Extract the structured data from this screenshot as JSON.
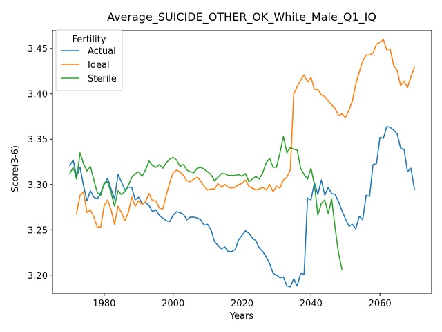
{
  "chart_data": {
    "type": "line",
    "title": "Average_SUICIDE_OTHER_OK_White_Male_Q1_IQ",
    "xlabel": "Years",
    "ylabel": "Score(3-6)",
    "xlim": [
      1965,
      2075
    ],
    "ylim": [
      3.18,
      3.47
    ],
    "x_ticks": [
      1980,
      2000,
      2020,
      2040,
      2060
    ],
    "y_ticks": [
      3.2,
      3.25,
      3.3,
      3.35,
      3.4,
      3.45
    ],
    "legend": {
      "title": "Fertility",
      "placement": "top-left"
    },
    "series": [
      {
        "name": "Actual",
        "color": "#1f77b4",
        "x": [
          1970,
          1971,
          1972,
          1973,
          1974,
          1975,
          1976,
          1977,
          1978,
          1979,
          1980,
          1981,
          1982,
          1983,
          1984,
          1985,
          1986,
          1987,
          1988,
          1989,
          1990,
          1991,
          1992,
          1993,
          1994,
          1995,
          1996,
          1997,
          1998,
          1999,
          2000,
          2001,
          2002,
          2003,
          2004,
          2005,
          2006,
          2007,
          2008,
          2009,
          2010,
          2011,
          2012,
          2013,
          2014,
          2015,
          2016,
          2017,
          2018,
          2019,
          2020,
          2021,
          2022,
          2023,
          2024,
          2025,
          2026,
          2027,
          2028,
          2029,
          2030,
          2031,
          2032,
          2033,
          2034,
          2035,
          2036,
          2037,
          2038,
          2039,
          2040,
          2041,
          2042,
          2043,
          2044,
          2045,
          2046,
          2047,
          2048,
          2049,
          2050,
          2051,
          2052,
          2053,
          2054,
          2055,
          2056,
          2057,
          2058,
          2059,
          2060,
          2061,
          2062,
          2063,
          2064,
          2065,
          2066,
          2067,
          2068,
          2069,
          2070
        ],
        "values": [
          3.321,
          3.327,
          3.309,
          3.319,
          3.299,
          3.282,
          3.293,
          3.286,
          3.284,
          3.291,
          3.3,
          3.307,
          3.295,
          3.284,
          3.311,
          3.303,
          3.294,
          3.297,
          3.297,
          3.283,
          3.286,
          3.279,
          3.28,
          3.277,
          3.27,
          3.272,
          3.266,
          3.263,
          3.26,
          3.259,
          3.266,
          3.27,
          3.269,
          3.267,
          3.261,
          3.264,
          3.264,
          3.263,
          3.261,
          3.255,
          3.256,
          3.25,
          3.237,
          3.233,
          3.229,
          3.231,
          3.226,
          3.226,
          3.228,
          3.239,
          3.244,
          3.249,
          3.246,
          3.241,
          3.238,
          3.23,
          3.226,
          3.22,
          3.213,
          3.202,
          3.2,
          3.197,
          3.198,
          3.188,
          3.187,
          3.196,
          3.188,
          3.202,
          3.201,
          3.285,
          3.283,
          3.302,
          3.289,
          3.305,
          3.288,
          3.297,
          3.29,
          3.289,
          3.281,
          3.271,
          3.262,
          3.254,
          3.256,
          3.251,
          3.265,
          3.261,
          3.288,
          3.287,
          3.322,
          3.323,
          3.352,
          3.351,
          3.364,
          3.363,
          3.36,
          3.356,
          3.34,
          3.339,
          3.314,
          3.318,
          3.295
        ]
      },
      {
        "name": "Ideal",
        "color": "#ff7f0e",
        "x": [
          1972,
          1973,
          1974,
          1975,
          1976,
          1977,
          1978,
          1979,
          1980,
          1981,
          1982,
          1983,
          1984,
          1985,
          1986,
          1987,
          1988,
          1989,
          1990,
          1991,
          1992,
          1993,
          1994,
          1995,
          1996,
          1997,
          1998,
          1999,
          2000,
          2001,
          2002,
          2003,
          2004,
          2005,
          2006,
          2007,
          2008,
          2009,
          2010,
          2011,
          2012,
          2013,
          2014,
          2015,
          2016,
          2017,
          2018,
          2019,
          2020,
          2021,
          2022,
          2023,
          2024,
          2025,
          2026,
          2027,
          2028,
          2029,
          2030,
          2031,
          2032,
          2033,
          2034,
          2035,
          2036,
          2037,
          2038,
          2039,
          2040,
          2041,
          2042,
          2043,
          2044,
          2045,
          2046,
          2047,
          2048,
          2049,
          2050,
          2051,
          2052,
          2053,
          2054,
          2055,
          2056,
          2057,
          2058,
          2059,
          2060,
          2061,
          2062,
          2063,
          2064,
          2065,
          2066,
          2067,
          2068,
          2069,
          2070
        ],
        "values": [
          3.268,
          3.288,
          3.292,
          3.269,
          3.272,
          3.264,
          3.253,
          3.253,
          3.277,
          3.283,
          3.272,
          3.256,
          3.276,
          3.269,
          3.26,
          3.269,
          3.286,
          3.276,
          3.282,
          3.278,
          3.281,
          3.29,
          3.282,
          3.282,
          3.274,
          3.273,
          3.288,
          3.302,
          3.313,
          3.316,
          3.314,
          3.31,
          3.304,
          3.303,
          3.306,
          3.308,
          3.304,
          3.298,
          3.294,
          3.295,
          3.295,
          3.301,
          3.297,
          3.3,
          3.297,
          3.296,
          3.297,
          3.3,
          3.301,
          3.305,
          3.298,
          3.296,
          3.294,
          3.295,
          3.297,
          3.294,
          3.3,
          3.292,
          3.298,
          3.296,
          3.305,
          3.308,
          3.316,
          3.4,
          3.408,
          3.415,
          3.421,
          3.413,
          3.418,
          3.405,
          3.405,
          3.399,
          3.397,
          3.392,
          3.388,
          3.384,
          3.376,
          3.378,
          3.374,
          3.382,
          3.392,
          3.411,
          3.424,
          3.436,
          3.443,
          3.443,
          3.445,
          3.455,
          3.457,
          3.46,
          3.448,
          3.449,
          3.431,
          3.426,
          3.409,
          3.414,
          3.407,
          3.419,
          3.429
        ]
      },
      {
        "name": "Sterile",
        "color": "#2ca02c",
        "x": [
          1970,
          1971,
          1972,
          1973,
          1974,
          1975,
          1976,
          1977,
          1978,
          1979,
          1980,
          1981,
          1982,
          1983,
          1984,
          1985,
          1986,
          1987,
          1988,
          1989,
          1990,
          1991,
          1992,
          1993,
          1994,
          1995,
          1996,
          1997,
          1998,
          1999,
          2000,
          2001,
          2002,
          2003,
          2004,
          2005,
          2006,
          2007,
          2008,
          2009,
          2010,
          2011,
          2012,
          2013,
          2014,
          2015,
          2016,
          2017,
          2018,
          2019,
          2020,
          2021,
          2022,
          2023,
          2024,
          2025,
          2026,
          2027,
          2028,
          2029,
          2030,
          2031,
          2032,
          2033,
          2034,
          2035,
          2036,
          2037,
          2038,
          2039,
          2040,
          2041,
          2042,
          2043,
          2044,
          2045,
          2046,
          2047,
          2048,
          2049
        ],
        "values": [
          3.312,
          3.319,
          3.306,
          3.335,
          3.323,
          3.315,
          3.32,
          3.305,
          3.291,
          3.288,
          3.302,
          3.303,
          3.291,
          3.276,
          3.293,
          3.289,
          3.292,
          3.299,
          3.308,
          3.312,
          3.314,
          3.309,
          3.316,
          3.326,
          3.321,
          3.319,
          3.322,
          3.318,
          3.324,
          3.328,
          3.33,
          3.327,
          3.32,
          3.322,
          3.316,
          3.314,
          3.313,
          3.318,
          3.319,
          3.317,
          3.314,
          3.311,
          3.304,
          3.308,
          3.312,
          3.312,
          3.31,
          3.31,
          3.31,
          3.311,
          3.309,
          3.312,
          3.303,
          3.306,
          3.309,
          3.306,
          3.313,
          3.324,
          3.329,
          3.319,
          3.319,
          3.335,
          3.353,
          3.335,
          3.341,
          3.339,
          3.338,
          3.318,
          3.311,
          3.306,
          3.318,
          3.3,
          3.266,
          3.279,
          3.283,
          3.268,
          3.284,
          3.252,
          3.224,
          3.206
        ]
      }
    ]
  }
}
